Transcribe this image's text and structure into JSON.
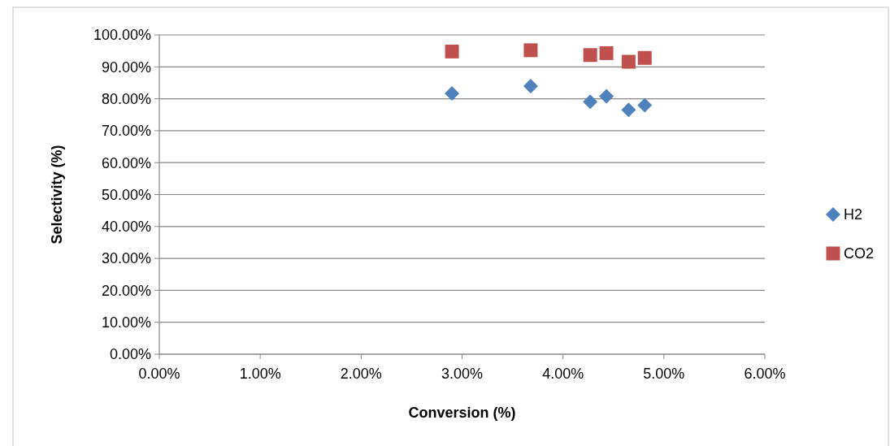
{
  "chart_data": {
    "type": "scatter",
    "xlabel": "Conversion (%)",
    "ylabel": "Selectivity (%)",
    "x": [
      2.9,
      3.68,
      4.27,
      4.43,
      4.65,
      4.81
    ],
    "series": [
      {
        "name": "H2",
        "color": "#4f81bd",
        "marker": "diamond",
        "values": [
          81.7,
          84.0,
          79.1,
          80.8,
          76.5,
          78.0
        ]
      },
      {
        "name": "CO2",
        "color": "#c0504d",
        "marker": "square",
        "values": [
          94.8,
          95.2,
          93.7,
          94.3,
          91.6,
          92.8
        ]
      }
    ],
    "xlim": [
      0,
      6
    ],
    "xticks": [
      {
        "value": 0,
        "label": "0.00%"
      },
      {
        "value": 1,
        "label": "1.00%"
      },
      {
        "value": 2,
        "label": "2.00%"
      },
      {
        "value": 3,
        "label": "3.00%"
      },
      {
        "value": 4,
        "label": "4.00%"
      },
      {
        "value": 5,
        "label": "5.00%"
      },
      {
        "value": 6,
        "label": "6.00%"
      }
    ],
    "ylim": [
      0,
      100
    ],
    "yticks": [
      {
        "value": 0,
        "label": "0.00%"
      },
      {
        "value": 10,
        "label": "10.00%"
      },
      {
        "value": 20,
        "label": "20.00%"
      },
      {
        "value": 30,
        "label": "30.00%"
      },
      {
        "value": 40,
        "label": "40.00%"
      },
      {
        "value": 50,
        "label": "50.00%"
      },
      {
        "value": 60,
        "label": "60.00%"
      },
      {
        "value": 70,
        "label": "70.00%"
      },
      {
        "value": 80,
        "label": "80.00%"
      },
      {
        "value": 90,
        "label": "90.00%"
      },
      {
        "value": 100,
        "label": "100.00%"
      }
    ],
    "grid": "y",
    "legend": "right"
  }
}
